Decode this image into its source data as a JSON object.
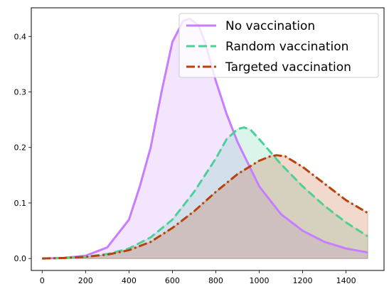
{
  "chart_data": {
    "type": "area",
    "title": "",
    "xlabel": "",
    "ylabel": "",
    "xlim": [
      -50,
      1575
    ],
    "ylim": [
      -0.0215,
      0.4515
    ],
    "xticks": [
      0,
      200,
      400,
      600,
      800,
      1000,
      1200,
      1400
    ],
    "yticks": [
      0.0,
      0.1,
      0.2,
      0.3,
      0.4
    ],
    "xtick_labels": [
      "0",
      "200",
      "400",
      "600",
      "800",
      "1000",
      "1200",
      "1400"
    ],
    "ytick_labels": [
      "0.0",
      "0.1",
      "0.2",
      "0.3",
      "0.4"
    ],
    "grid": false,
    "legend_position": "upper right",
    "series": [
      {
        "name": "No vaccination",
        "color": "#c77dff",
        "fill": "#e9d2ff",
        "line_style": "solid",
        "points": [
          [
            0,
            0
          ],
          [
            100,
            0.001
          ],
          [
            200,
            0.005
          ],
          [
            300,
            0.02
          ],
          [
            400,
            0.07
          ],
          [
            450,
            0.13
          ],
          [
            500,
            0.2
          ],
          [
            550,
            0.3
          ],
          [
            600,
            0.39
          ],
          [
            650,
            0.428
          ],
          [
            680,
            0.432
          ],
          [
            720,
            0.42
          ],
          [
            750,
            0.39
          ],
          [
            800,
            0.32
          ],
          [
            850,
            0.26
          ],
          [
            900,
            0.21
          ],
          [
            950,
            0.17
          ],
          [
            1000,
            0.13
          ],
          [
            1100,
            0.08
          ],
          [
            1200,
            0.05
          ],
          [
            1300,
            0.03
          ],
          [
            1400,
            0.018
          ],
          [
            1500,
            0.011
          ]
        ]
      },
      {
        "name": "Random vaccination",
        "color": "#4ecf9a",
        "fill": "#cceee0",
        "line_style": "dashed",
        "points": [
          [
            0,
            0
          ],
          [
            100,
            0.001
          ],
          [
            200,
            0.003
          ],
          [
            300,
            0.008
          ],
          [
            400,
            0.018
          ],
          [
            500,
            0.038
          ],
          [
            600,
            0.07
          ],
          [
            700,
            0.12
          ],
          [
            800,
            0.18
          ],
          [
            850,
            0.215
          ],
          [
            900,
            0.233
          ],
          [
            930,
            0.236
          ],
          [
            960,
            0.232
          ],
          [
            1000,
            0.215
          ],
          [
            1100,
            0.17
          ],
          [
            1200,
            0.13
          ],
          [
            1300,
            0.095
          ],
          [
            1400,
            0.065
          ],
          [
            1500,
            0.04
          ]
        ]
      },
      {
        "name": "Targeted vaccination",
        "color": "#b8410b",
        "fill": "#eec9b8",
        "line_style": "dashdot",
        "points": [
          [
            0,
            0
          ],
          [
            100,
            0.001
          ],
          [
            200,
            0.003
          ],
          [
            300,
            0.007
          ],
          [
            400,
            0.015
          ],
          [
            500,
            0.03
          ],
          [
            600,
            0.055
          ],
          [
            700,
            0.085
          ],
          [
            800,
            0.12
          ],
          [
            900,
            0.152
          ],
          [
            1000,
            0.176
          ],
          [
            1050,
            0.184
          ],
          [
            1080,
            0.186
          ],
          [
            1120,
            0.184
          ],
          [
            1200,
            0.165
          ],
          [
            1300,
            0.135
          ],
          [
            1400,
            0.105
          ],
          [
            1500,
            0.082
          ]
        ]
      }
    ]
  }
}
